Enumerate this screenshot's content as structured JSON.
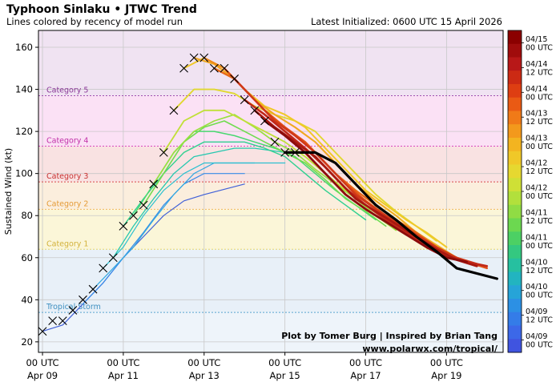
{
  "chart_data": {
    "type": "line",
    "title": "Typhoon Sinlaku • JTWC Trend",
    "subtitle": "Lines colored by recency of model run",
    "init_label": "Latest Initialized: 0600 UTC 15 April 2026",
    "ylabel": "Sustained Wind (kt)",
    "credit_line1": "Plot by Tomer Burg | Inspired by Brian Tang",
    "credit_line2": "www.polarwx.com/tropical/",
    "x_unit": "days since 00 UTC Apr 09",
    "xlim": [
      -0.1,
      11.4
    ],
    "ylim": [
      15,
      168
    ],
    "x_ticks": [
      {
        "x": 0,
        "line1": "00 UTC",
        "line2": "Apr 09"
      },
      {
        "x": 2,
        "line1": "00 UTC",
        "line2": "Apr 11"
      },
      {
        "x": 4,
        "line1": "00 UTC",
        "line2": "Apr 13"
      },
      {
        "x": 6,
        "line1": "00 UTC",
        "line2": "Apr 15"
      },
      {
        "x": 8,
        "line1": "00 UTC",
        "line2": "Apr 17"
      },
      {
        "x": 10,
        "line1": "00 UTC",
        "line2": "Apr 19"
      }
    ],
    "y_ticks": [
      20,
      40,
      60,
      80,
      100,
      120,
      140,
      160
    ],
    "grid": true,
    "bands": [
      {
        "name": "Tropical Storm",
        "from": 34,
        "to": 64,
        "fill": "#e8f0f8",
        "line": "#5aa5d0",
        "label_color": "#3d8fc0"
      },
      {
        "name": "Category 1",
        "from": 64,
        "to": 83,
        "fill": "#fbf6d8",
        "line": "#e8d86a",
        "label_color": "#d2b13a"
      },
      {
        "name": "Category 2",
        "from": 83,
        "to": 96,
        "fill": "#fbeedd",
        "line": "#f0b860",
        "label_color": "#e49a35"
      },
      {
        "name": "Category 3",
        "from": 96,
        "to": 113,
        "fill": "#f9e2e2",
        "line": "#d84848",
        "label_color": "#c83030"
      },
      {
        "name": "Category 4",
        "from": 113,
        "to": 137,
        "fill": "#fbe1f5",
        "line": "#d848c0",
        "label_color": "#c030a8"
      },
      {
        "name": "Category 5",
        "from": 137,
        "to": 168,
        "fill": "#f0e3f2",
        "line": "#a050b0",
        "label_color": "#8a3898"
      }
    ],
    "below_band_fill": "#eef4fa",
    "best_track": {
      "marker": "x",
      "x": [
        0,
        0.25,
        0.5,
        0.75,
        1.0,
        1.25,
        1.5,
        1.75,
        2.0,
        2.25,
        2.5,
        2.75,
        3.0,
        3.25,
        3.5,
        3.75,
        4.0,
        4.25,
        4.5,
        4.75,
        5.0,
        5.25,
        5.5,
        5.75,
        6.0,
        6.25
      ],
      "y": [
        25,
        30,
        30,
        35,
        40,
        45,
        55,
        60,
        75,
        80,
        85,
        95,
        110,
        130,
        150,
        155,
        155,
        150,
        150,
        145,
        135,
        130,
        125,
        115,
        110,
        110
      ]
    },
    "series": [
      {
        "color": "#4060d8",
        "width": 1.2,
        "x": [
          0,
          0.5,
          1.0,
          1.5,
          2.0,
          2.5,
          3.0,
          3.5,
          4.0,
          5.0
        ],
        "y": [
          25,
          28,
          38,
          48,
          60,
          70,
          80,
          87,
          90,
          95
        ]
      },
      {
        "color": "#3a8ce8",
        "width": 1.2,
        "x": [
          1.0,
          1.5,
          2.0,
          2.5,
          3.0,
          3.5,
          4.0,
          5.0
        ],
        "y": [
          38,
          48,
          60,
          72,
          85,
          95,
          100,
          100
        ]
      },
      {
        "color": "#32a8e0",
        "width": 1.2,
        "x": [
          1.25,
          1.75,
          2.25,
          2.75,
          3.25,
          3.75,
          4.25,
          5.25
        ],
        "y": [
          45,
          55,
          65,
          78,
          90,
          100,
          105,
          105
        ]
      },
      {
        "color": "#2cc0d0",
        "width": 1.2,
        "x": [
          1.5,
          2.0,
          2.5,
          3.0,
          3.5,
          4.0,
          4.5,
          5.0,
          6.0
        ],
        "y": [
          55,
          65,
          80,
          92,
          100,
          105,
          105,
          105,
          105
        ]
      },
      {
        "color": "#28c8b0",
        "width": 1.3,
        "x": [
          1.75,
          2.25,
          2.75,
          3.25,
          3.75,
          4.25,
          4.75,
          5.25,
          6.0
        ],
        "y": [
          60,
          75,
          88,
          100,
          108,
          110,
          112,
          112,
          110
        ]
      },
      {
        "color": "#30d090",
        "width": 1.4,
        "x": [
          2.0,
          2.5,
          3.0,
          3.5,
          4.0,
          4.5,
          5.0,
          5.5,
          6.0,
          6.5,
          7.0,
          7.5,
          8.0
        ],
        "y": [
          75,
          88,
          100,
          110,
          115,
          115,
          115,
          112,
          108,
          100,
          92,
          85,
          78
        ]
      },
      {
        "color": "#48d870",
        "width": 1.5,
        "x": [
          2.25,
          2.75,
          3.25,
          3.75,
          4.25,
          4.75,
          5.25,
          5.75,
          6.25,
          6.75,
          7.25,
          7.75,
          8.25
        ],
        "y": [
          80,
          95,
          110,
          120,
          120,
          118,
          115,
          112,
          108,
          100,
          92,
          85,
          78
        ]
      },
      {
        "color": "#70dc50",
        "width": 1.6,
        "x": [
          2.5,
          3.0,
          3.5,
          4.0,
          4.5,
          5.0,
          5.5,
          6.0,
          6.5,
          7.0,
          7.5,
          8.0,
          8.5
        ],
        "y": [
          85,
          100,
          115,
          122,
          125,
          120,
          115,
          110,
          105,
          97,
          88,
          82,
          75
        ]
      },
      {
        "color": "#98e040",
        "width": 1.7,
        "x": [
          2.75,
          3.25,
          3.75,
          4.25,
          4.75,
          5.25,
          5.75,
          6.25,
          6.75,
          7.25,
          7.75,
          8.25,
          8.75
        ],
        "y": [
          95,
          110,
          120,
          125,
          128,
          122,
          115,
          110,
          102,
          95,
          88,
          80,
          73
        ]
      },
      {
        "color": "#c0e038",
        "width": 1.8,
        "x": [
          3.0,
          3.5,
          4.0,
          4.5,
          5.0,
          5.5,
          6.0,
          6.5,
          7.0,
          7.5,
          8.0,
          8.5,
          9.0
        ],
        "y": [
          110,
          125,
          130,
          130,
          125,
          120,
          115,
          108,
          100,
          92,
          85,
          78,
          72
        ]
      },
      {
        "color": "#e0d830",
        "width": 1.9,
        "x": [
          3.25,
          3.75,
          4.25,
          4.75,
          5.25,
          5.75,
          6.25,
          6.75,
          7.25,
          7.75,
          8.25,
          8.75,
          9.25,
          9.75
        ],
        "y": [
          130,
          140,
          140,
          138,
          132,
          128,
          125,
          120,
          110,
          100,
          90,
          82,
          75,
          68
        ]
      },
      {
        "color": "#f0c828",
        "width": 2.0,
        "x": [
          3.5,
          4.0,
          4.5,
          5.0,
          5.5,
          6.0,
          6.5,
          7.0,
          7.5,
          8.0,
          8.5,
          9.0,
          9.5,
          10.0
        ],
        "y": [
          150,
          155,
          150,
          140,
          132,
          128,
          122,
          112,
          102,
          92,
          85,
          78,
          72,
          65
        ]
      },
      {
        "color": "#f0a820",
        "width": 2.1,
        "x": [
          3.75,
          4.25,
          4.75,
          5.25,
          5.75,
          6.25,
          6.75,
          7.25,
          7.75,
          8.25,
          8.75,
          9.25,
          9.75,
          10.25
        ],
        "y": [
          155,
          152,
          145,
          135,
          128,
          122,
          115,
          105,
          95,
          87,
          80,
          72,
          66,
          60
        ]
      },
      {
        "color": "#f08818",
        "width": 2.2,
        "x": [
          4.0,
          4.5,
          5.0,
          5.5,
          6.0,
          6.5,
          7.0,
          7.5,
          8.0,
          8.5,
          9.0,
          9.5,
          10.0,
          10.5
        ],
        "y": [
          155,
          150,
          140,
          130,
          122,
          115,
          105,
          95,
          87,
          80,
          73,
          67,
          62,
          58
        ]
      },
      {
        "color": "#e86818",
        "width": 2.3,
        "x": [
          4.25,
          4.75,
          5.25,
          5.75,
          6.25,
          6.75,
          7.25,
          7.75,
          8.25,
          8.75,
          9.25,
          9.75,
          10.25,
          10.75
        ],
        "y": [
          150,
          145,
          135,
          125,
          118,
          110,
          100,
          92,
          85,
          78,
          72,
          65,
          60,
          56
        ]
      },
      {
        "color": "#e05018",
        "width": 2.4,
        "x": [
          4.5,
          5.0,
          5.5,
          6.0,
          6.5,
          7.0,
          7.5,
          8.0,
          8.5,
          9.0,
          9.5,
          10.0,
          10.5,
          11.0
        ],
        "y": [
          150,
          140,
          130,
          122,
          115,
          105,
          95,
          87,
          80,
          74,
          68,
          62,
          58,
          55
        ]
      },
      {
        "color": "#d03818",
        "width": 2.5,
        "x": [
          4.75,
          5.25,
          5.75,
          6.25,
          6.75,
          7.25,
          7.75,
          8.25,
          8.75,
          9.25,
          9.75,
          10.25,
          10.75
        ],
        "y": [
          145,
          135,
          125,
          118,
          110,
          100,
          90,
          83,
          77,
          71,
          65,
          60,
          57
        ]
      },
      {
        "color": "#c02818",
        "width": 2.6,
        "x": [
          5.0,
          5.5,
          6.0,
          6.5,
          7.0,
          7.5,
          8.0,
          8.5,
          9.0,
          9.5,
          10.0,
          10.5,
          11.0
        ],
        "y": [
          135,
          128,
          120,
          112,
          103,
          93,
          85,
          78,
          72,
          66,
          61,
          58,
          56
        ]
      },
      {
        "color": "#a81810",
        "width": 2.7,
        "x": [
          5.25,
          5.75,
          6.25,
          6.75,
          7.25,
          7.75,
          8.25,
          8.75,
          9.25,
          9.75,
          10.25,
          10.75
        ],
        "y": [
          130,
          122,
          115,
          108,
          98,
          88,
          82,
          76,
          70,
          64,
          59,
          56
        ]
      },
      {
        "color": "#8c0c0c",
        "width": 2.8,
        "x": [
          5.5,
          6.0,
          6.5,
          7.0,
          7.5,
          8.0,
          8.5,
          9.0,
          9.5,
          10.0,
          10.5
        ],
        "y": [
          125,
          118,
          110,
          100,
          90,
          83,
          77,
          71,
          65,
          60,
          58
        ]
      },
      {
        "color": "#000000",
        "width": 3.2,
        "x": [
          6.0,
          6.25,
          6.75,
          7.25,
          7.75,
          8.25,
          8.75,
          9.25,
          9.75,
          10.25,
          11.25
        ],
        "y": [
          110,
          110,
          110,
          105,
          95,
          85,
          78,
          70,
          63,
          55,
          50
        ]
      }
    ],
    "colorbar": {
      "tick_labels": [
        {
          "line1": "04/15",
          "line2": "00 UTC"
        },
        {
          "line1": "04/14",
          "line2": "12 UTC"
        },
        {
          "line1": "04/14",
          "line2": "00 UTC"
        },
        {
          "line1": "04/13",
          "line2": "12 UTC"
        },
        {
          "line1": "04/13",
          "line2": "00 UTC"
        },
        {
          "line1": "04/12",
          "line2": "12 UTC"
        },
        {
          "line1": "04/12",
          "line2": "00 UTC"
        },
        {
          "line1": "04/11",
          "line2": "12 UTC"
        },
        {
          "line1": "04/11",
          "line2": "00 UTC"
        },
        {
          "line1": "04/10",
          "line2": "12 UTC"
        },
        {
          "line1": "04/10",
          "line2": "00 UTC"
        },
        {
          "line1": "04/09",
          "line2": "12 UTC"
        },
        {
          "line1": "04/09",
          "line2": "00 UTC"
        }
      ],
      "colors_top_to_bottom": [
        "#8b0000",
        "#a00c0c",
        "#b81818",
        "#cc2a14",
        "#de3e12",
        "#ea5a14",
        "#f07a18",
        "#f3991c",
        "#f3b420",
        "#f0c828",
        "#e6d830",
        "#cfe036",
        "#b2e03c",
        "#90dc44",
        "#6cd850",
        "#4cd064",
        "#34c880",
        "#26c0a0",
        "#22b4c0",
        "#26a4d8",
        "#2c90e4",
        "#347ce8",
        "#3c68e8",
        "#4054e0"
      ]
    }
  }
}
